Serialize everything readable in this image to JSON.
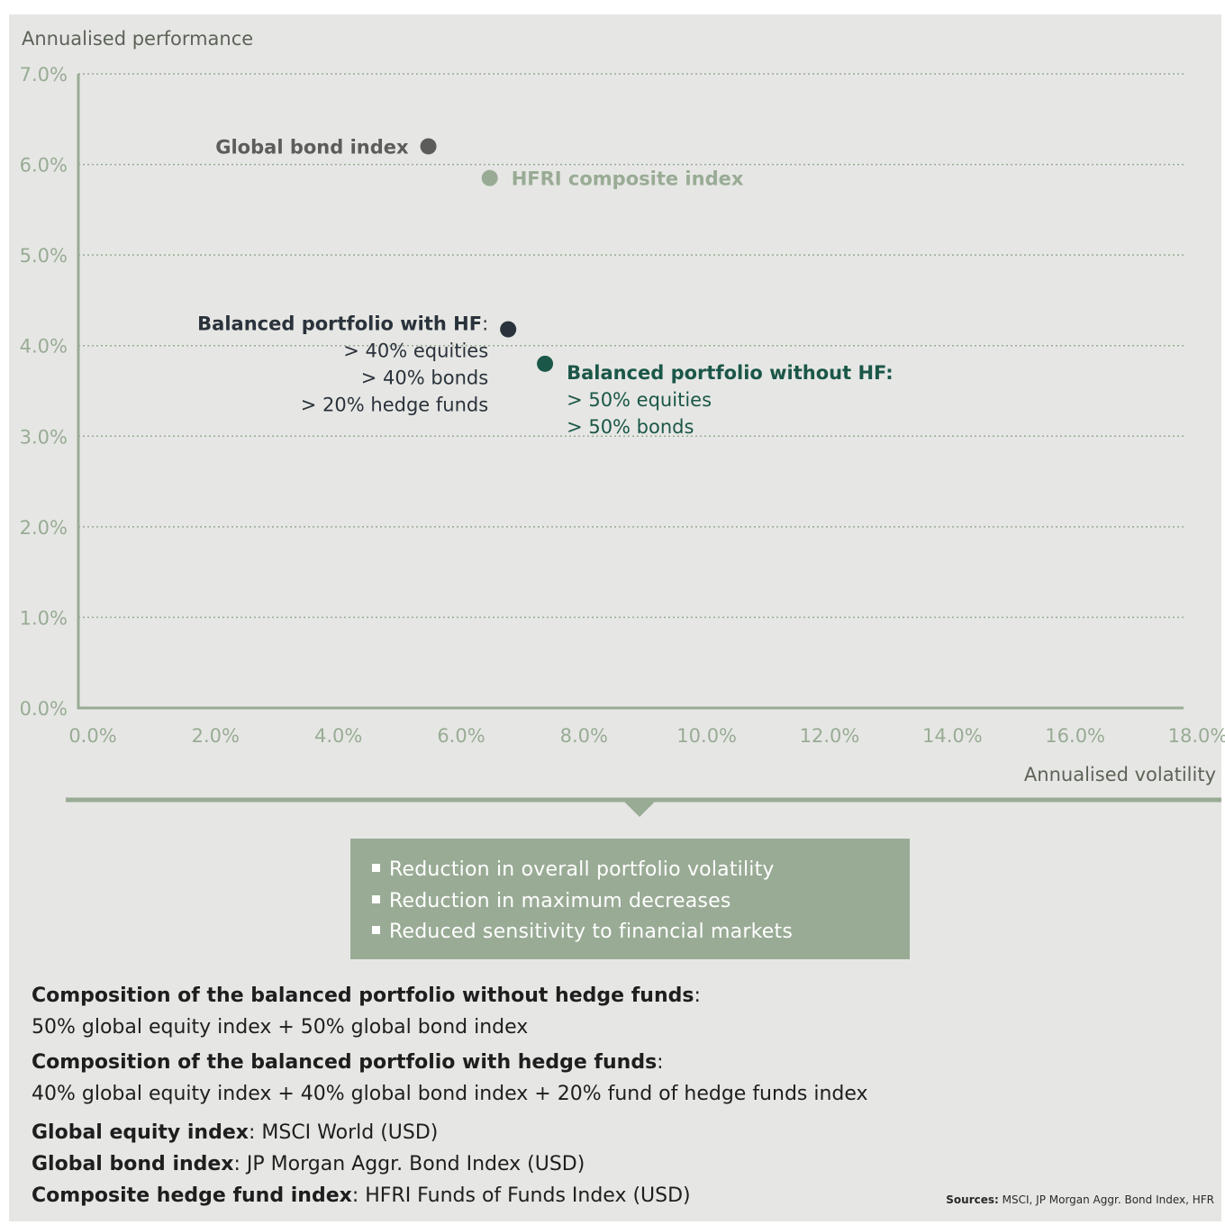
{
  "chart_data": {
    "type": "scatter",
    "ylabel": "Annualised performance",
    "xlabel": "Annualised volatility",
    "xlim": [
      0,
      18
    ],
    "ylim": [
      0,
      7
    ],
    "x_ticks": [
      "0.0%",
      "2.0%",
      "4.0%",
      "6.0%",
      "8.0%",
      "10.0%",
      "12.0%",
      "14.0%",
      "16.0%",
      "18.0%"
    ],
    "y_ticks": [
      "0.0%",
      "1.0%",
      "2.0%",
      "3.0%",
      "4.0%",
      "5.0%",
      "6.0%",
      "7.0%"
    ],
    "grid": "horizontal dotted",
    "points": [
      {
        "name": "Global bond index",
        "x": 5.7,
        "y": 6.2,
        "color": "#5c5c5a",
        "label_side": "left"
      },
      {
        "name": "HFRI composite index",
        "x": 6.7,
        "y": 5.85,
        "color": "#99ab95",
        "label_side": "right"
      },
      {
        "name": "Balanced portfolio with HF",
        "suffix": ":",
        "x": 7.0,
        "y": 4.18,
        "color": "#2a323b",
        "label_side": "left",
        "details": [
          "> 40% equities",
          "> 40% bonds",
          "> 20% hedge funds"
        ]
      },
      {
        "name": "Balanced portfolio without HF:",
        "suffix": "",
        "x": 7.6,
        "y": 3.8,
        "color": "#1b5748",
        "label_side": "right",
        "details": [
          "> 50% equities",
          "> 50% bonds"
        ]
      }
    ]
  },
  "callout": {
    "items": [
      "Reduction in overall portfolio volatility",
      "Reduction in maximum decreases",
      "Reduced sensitivity to financial markets"
    ]
  },
  "notes": {
    "without_title": "Composition of the balanced portfolio without hedge funds",
    "without_value": "50% global equity index + 50% global bond index",
    "with_title": "Composition of the balanced portfolio with hedge funds",
    "with_value": "40% global equity index + 40% global bond index + 20% fund of hedge funds index",
    "equity_label": "Global equity index",
    "equity_value": "MSCI World (USD)",
    "bond_label": "Global bond index",
    "bond_value": "JP Morgan Aggr. Bond Index (USD)",
    "hf_label": "Composite hedge fund index",
    "hf_value": "HFRI Funds of Funds Index (USD)"
  },
  "sources": {
    "label": "Sources:",
    "value": "MSCI, JP Morgan Aggr. Bond Index, HFR"
  },
  "colors": {
    "background": "#e6e7e4",
    "axis_green": "#99ab95",
    "dark_green": "#1b5748",
    "navy": "#2a323b",
    "gray": "#5c5c5a"
  }
}
